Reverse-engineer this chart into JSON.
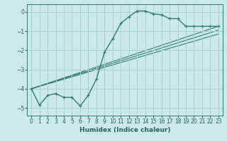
{
  "xlabel": "Humidex (Indice chaleur)",
  "bg_color": "#cce8ec",
  "grid_color": "#aacdd4",
  "line_color": "#2e7d72",
  "xlim": [
    -0.5,
    23.5
  ],
  "ylim": [
    -5.4,
    0.4
  ],
  "xticks": [
    0,
    1,
    2,
    3,
    4,
    5,
    6,
    7,
    8,
    9,
    10,
    11,
    12,
    13,
    14,
    15,
    16,
    17,
    18,
    19,
    20,
    21,
    22,
    23
  ],
  "yticks": [
    0,
    -1,
    -2,
    -3,
    -4,
    -5
  ],
  "curve": [
    [
      0,
      -4.0
    ],
    [
      1,
      -4.85
    ],
    [
      2,
      -4.35
    ],
    [
      3,
      -4.25
    ],
    [
      4,
      -4.45
    ],
    [
      5,
      -4.45
    ],
    [
      6,
      -4.9
    ],
    [
      7,
      -4.35
    ],
    [
      8,
      -3.5
    ],
    [
      9,
      -2.1
    ],
    [
      10,
      -1.4
    ],
    [
      11,
      -0.6
    ],
    [
      12,
      -0.25
    ],
    [
      13,
      0.05
    ],
    [
      14,
      0.05
    ],
    [
      15,
      -0.1
    ],
    [
      16,
      -0.15
    ],
    [
      17,
      -0.35
    ],
    [
      18,
      -0.35
    ],
    [
      19,
      -0.75
    ],
    [
      20,
      -0.75
    ],
    [
      21,
      -0.75
    ],
    [
      22,
      -0.75
    ],
    [
      23,
      -0.75
    ]
  ],
  "straight_lines": [
    [
      [
        0,
        -4.0
      ],
      [
        23,
        -0.75
      ]
    ],
    [
      [
        0,
        -4.0
      ],
      [
        23,
        -0.95
      ]
    ],
    [
      [
        0,
        -4.0
      ],
      [
        23,
        -1.15
      ]
    ]
  ],
  "tick_fontsize": 5.5,
  "xlabel_fontsize": 6.5,
  "tick_color": "#2a6060",
  "spine_color": "#2e7d72"
}
